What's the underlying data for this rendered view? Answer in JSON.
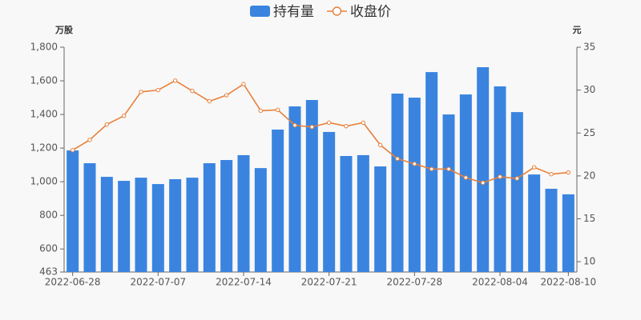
{
  "chart_data": {
    "type": "bar-line",
    "y_label": "万股",
    "y2_label": "元",
    "categories": [
      "2022-06-28",
      null,
      null,
      null,
      null,
      "2022-07-07",
      null,
      null,
      null,
      null,
      "2022-07-14",
      null,
      null,
      null,
      null,
      "2022-07-21",
      null,
      null,
      null,
      null,
      "2022-07-28",
      null,
      null,
      null,
      null,
      "2022-08-04",
      null,
      null,
      null,
      "2022-08-10"
    ],
    "series": [
      {
        "name": "持有量",
        "color": "#3a84e0",
        "values": [
          1186,
          1110,
          1029,
          1005,
          1024,
          986,
          1015,
          1024,
          1110,
          1129,
          1158,
          1081,
          1310,
          1448,
          1486,
          1296,
          1153,
          1158,
          1091,
          1524,
          1500,
          1652,
          1400,
          1519,
          1681,
          1567,
          1414,
          1043,
          958,
          925
        ]
      },
      {
        "name": "收盘价",
        "color": "#e8803a",
        "axis": "y2",
        "values": [
          23.0,
          24.2,
          26.0,
          27.0,
          29.8,
          30.0,
          31.1,
          29.9,
          28.7,
          29.4,
          30.7,
          27.6,
          27.7,
          25.9,
          25.7,
          26.2,
          25.8,
          26.2,
          23.6,
          22.0,
          21.4,
          20.8,
          20.8,
          19.8,
          19.2,
          19.9,
          19.7,
          21.0,
          20.2,
          20.4
        ]
      }
    ],
    "ylim": [
      463,
      1800
    ],
    "yticks": [
      463,
      600,
      800,
      {
        "value": 1000,
        "label": "1,000"
      },
      {
        "value": 1200,
        "label": "1,200"
      },
      {
        "value": 1400,
        "label": "1,400"
      },
      {
        "value": 1600,
        "label": "1,600"
      },
      {
        "value": 1800,
        "label": "1,800"
      }
    ],
    "y2lim": [
      8.8,
      35
    ],
    "y2ticks": [
      10,
      15,
      20,
      25,
      30,
      35
    ]
  }
}
